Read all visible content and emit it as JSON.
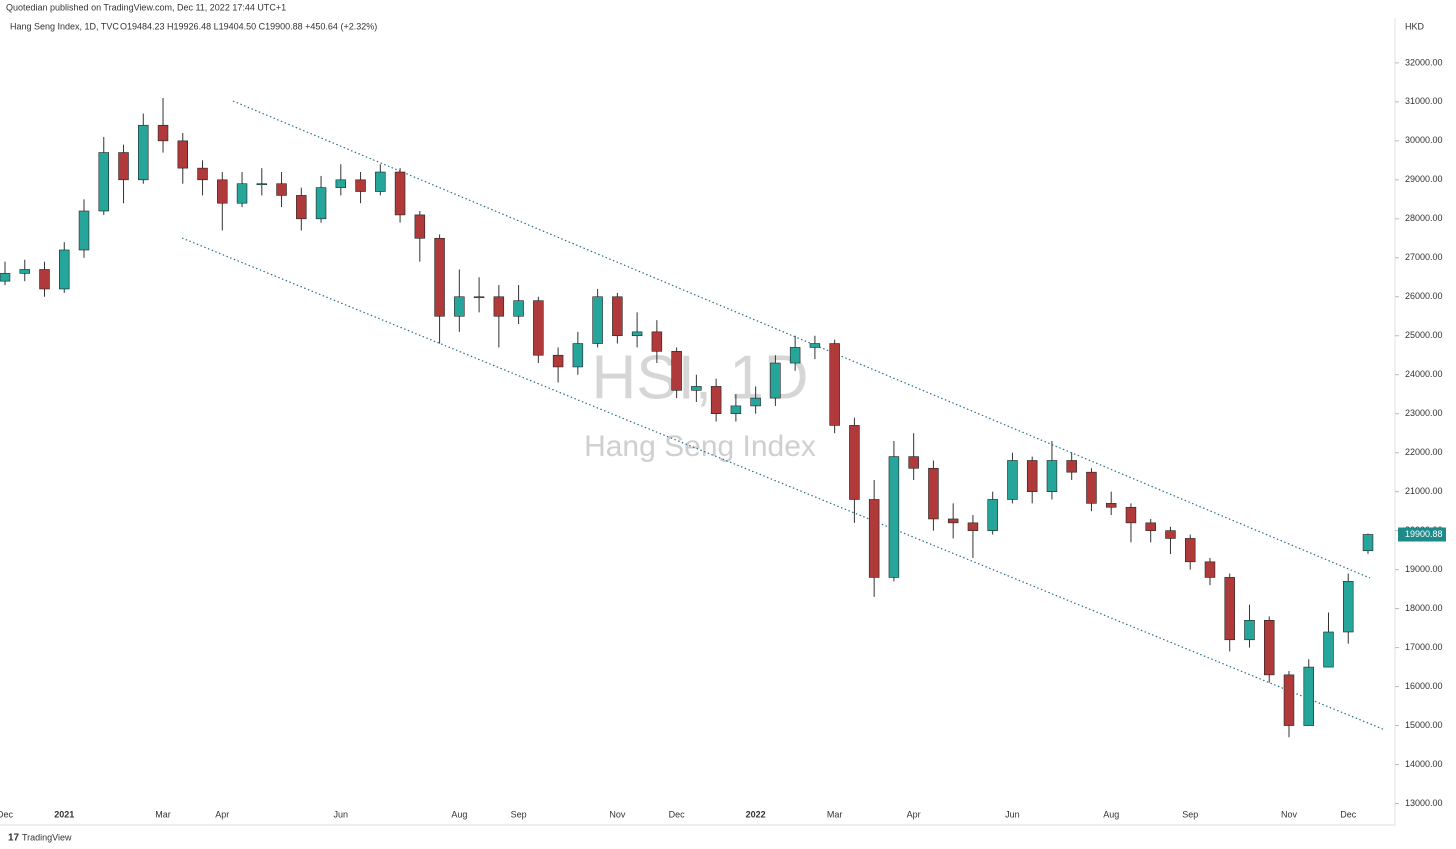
{
  "chart_data": {
    "type": "candlestick",
    "header": "Quotedian published on TradingView.com, Dec 11, 2022 17:44 UTC+1",
    "legend_title": "Hang Seng Index, 1D, TVC",
    "ohlc_text": "O19484.23 H19926.48 L19404.50 C19900.88 +450.64 (+2.32%)",
    "currency": "HKD",
    "watermark_symbol": "HSI, 1D",
    "watermark_name": "Hang Seng Index",
    "footer": "TradingView",
    "up_color": "#26a69a",
    "down_color": "#b03a3a",
    "wick_color": "#333333",
    "last_price_color": "#1f8a8a",
    "categories": [
      "Dec",
      null,
      null,
      "2021",
      null,
      null,
      null,
      null,
      "Mar",
      null,
      null,
      "Apr",
      null,
      null,
      null,
      null,
      null,
      "Jun",
      null,
      null,
      null,
      null,
      null,
      "Aug",
      null,
      null,
      "Sep",
      null,
      null,
      null,
      null,
      "Nov",
      null,
      null,
      "Dec",
      null,
      null,
      null,
      "2022",
      null,
      null,
      null,
      "Mar",
      null,
      null,
      null,
      "Apr",
      null,
      null,
      null,
      null,
      "Jun",
      null,
      null,
      null,
      null,
      "Aug",
      null,
      null,
      null,
      "Sep",
      null,
      null,
      null,
      null,
      "Nov",
      null,
      null,
      "Dec",
      null
    ],
    "open": [
      26400,
      26600,
      26700,
      26200,
      27200,
      28200,
      29700,
      29000,
      30400,
      30000,
      29300,
      29000,
      28400,
      28900,
      28900,
      28600,
      28000,
      28800,
      29000,
      28700,
      29200,
      28100,
      27500,
      25500,
      26000,
      26000,
      25500,
      25900,
      24500,
      24200,
      24800,
      26000,
      25000,
      25100,
      24600,
      23600,
      23700,
      23000,
      23200,
      23400,
      24300,
      24700,
      24800,
      22700,
      20800,
      18800,
      21900,
      21600,
      20300,
      20200,
      20000,
      20800,
      21800,
      21000,
      21800,
      21500,
      20700,
      20600,
      20200,
      20000,
      19800,
      19200,
      18800,
      17200,
      17700,
      16300,
      15000,
      16500,
      17400,
      19484.23
    ],
    "high": [
      26900,
      26950,
      26900,
      27400,
      28500,
      30100,
      29900,
      30700,
      31100,
      30200,
      29500,
      29200,
      29200,
      29300,
      29200,
      28800,
      29100,
      29400,
      29200,
      29400,
      29300,
      28200,
      27600,
      26700,
      26500,
      26300,
      26300,
      26000,
      24700,
      25100,
      26200,
      26100,
      25600,
      25400,
      24700,
      24000,
      23900,
      23500,
      23700,
      24500,
      25000,
      25000,
      24900,
      22900,
      21300,
      22300,
      22500,
      21800,
      20700,
      20400,
      21000,
      22000,
      21900,
      22300,
      22000,
      21600,
      21000,
      20700,
      20300,
      20100,
      19900,
      19300,
      18900,
      18100,
      17800,
      16400,
      16700,
      17900,
      18900,
      19926.48
    ],
    "low": [
      26300,
      26400,
      26000,
      26100,
      27000,
      28100,
      28400,
      28900,
      29700,
      28900,
      28600,
      27700,
      28300,
      28600,
      28300,
      27700,
      27900,
      28600,
      28400,
      28600,
      27900,
      26900,
      24800,
      25100,
      25600,
      24700,
      25300,
      24300,
      23800,
      24000,
      24700,
      24800,
      24700,
      24300,
      23400,
      23300,
      22800,
      22800,
      23000,
      23200,
      24100,
      24400,
      22500,
      20200,
      18300,
      18700,
      21300,
      20000,
      19800,
      19300,
      19900,
      20700,
      20700,
      20800,
      21300,
      20500,
      20400,
      19700,
      19700,
      19400,
      19000,
      18600,
      16900,
      17000,
      16100,
      14700,
      15000,
      16500,
      17100,
      19404.5
    ],
    "close": [
      26600,
      26700,
      26200,
      27200,
      28200,
      29700,
      29000,
      30400,
      30000,
      29300,
      29000,
      28400,
      28900,
      28900,
      28600,
      28000,
      28800,
      29000,
      28700,
      29200,
      28100,
      27500,
      25500,
      26000,
      26000,
      25500,
      25900,
      24500,
      24200,
      24800,
      26000,
      25000,
      25100,
      24600,
      23600,
      23700,
      23000,
      23200,
      23400,
      24300,
      24700,
      24800,
      22700,
      20800,
      18800,
      21900,
      21600,
      20300,
      20200,
      20000,
      20800,
      21800,
      21000,
      21800,
      21500,
      20700,
      20600,
      20200,
      20000,
      19800,
      19200,
      18800,
      17200,
      17700,
      16300,
      15000,
      16500,
      17400,
      18700,
      19900.88
    ],
    "ylim": [
      12500,
      33100
    ],
    "yticks": [
      {
        "value": 13000,
        "label": "13000.00"
      },
      {
        "value": 14000,
        "label": "14000.00"
      },
      {
        "value": 15000,
        "label": "15000.00"
      },
      {
        "value": 16000,
        "label": "16000.00"
      },
      {
        "value": 17000,
        "label": "17000.00"
      },
      {
        "value": 18000,
        "label": "18000.00"
      },
      {
        "value": 19000,
        "label": "19000.00"
      },
      {
        "value": 20000,
        "label": "20000.00"
      },
      {
        "value": 21000,
        "label": "21000.00"
      },
      {
        "value": 22000,
        "label": "22000.00"
      },
      {
        "value": 23000,
        "label": "23000.00"
      },
      {
        "value": 24000,
        "label": "24000.00"
      },
      {
        "value": 25000,
        "label": "25000.00"
      },
      {
        "value": 26000,
        "label": "26000.00"
      },
      {
        "value": 27000,
        "label": "27000.00"
      },
      {
        "value": 28000,
        "label": "28000.00"
      },
      {
        "value": 29000,
        "label": "29000.00"
      },
      {
        "value": 30000,
        "label": "30000.00"
      },
      {
        "value": 31000,
        "label": "31000.00"
      },
      {
        "value": 32000,
        "label": "32000.00"
      }
    ]
  }
}
